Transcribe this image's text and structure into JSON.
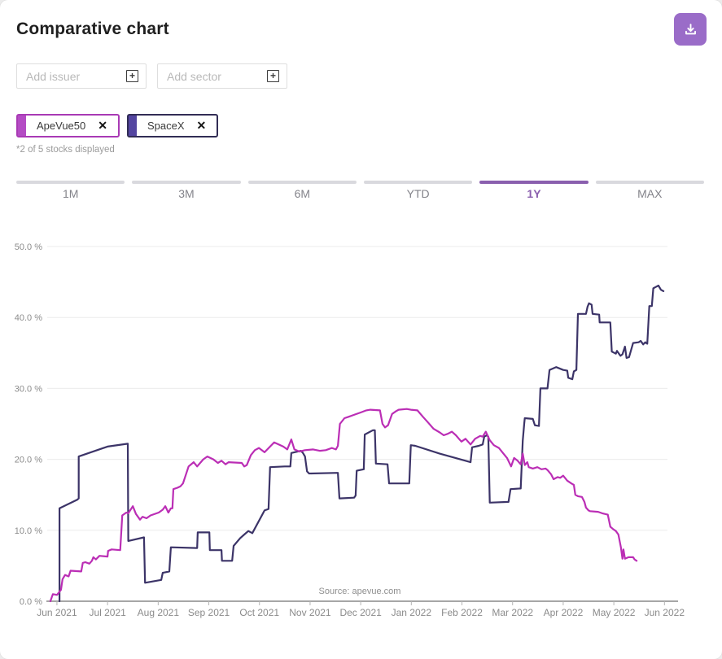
{
  "header": {
    "title": "Comparative chart"
  },
  "toolbar": {
    "download_button_color": "#9a6cc8"
  },
  "filters": {
    "issuer_placeholder": "Add issuer",
    "sector_placeholder": "Add sector",
    "plus_icon": "+"
  },
  "chips": [
    {
      "label": "ApeVue50",
      "bar_color": "#b44cc4",
      "border_color": "#a93ab5",
      "close_icon": "✕"
    },
    {
      "label": "SpaceX",
      "bar_color": "#5345a0",
      "border_color": "#322d55",
      "close_icon": "✕"
    }
  ],
  "caption": "*2 of 5 stocks displayed",
  "tabs": [
    {
      "label": "1M",
      "active": false
    },
    {
      "label": "3M",
      "active": false
    },
    {
      "label": "6M",
      "active": false
    },
    {
      "label": "YTD",
      "active": false
    },
    {
      "label": "1Y",
      "active": true
    },
    {
      "label": "MAX",
      "active": false
    }
  ],
  "chart_data": {
    "type": "line",
    "title": "",
    "xlabel": "",
    "ylabel": "",
    "grid": true,
    "legend_position": "none",
    "source_note": "Source: apevue.com",
    "ylim": [
      0,
      50
    ],
    "y_ticks": [
      "0.0 %",
      "10.0 %",
      "20.0 %",
      "30.0 %",
      "40.0 %",
      "50.0 %"
    ],
    "x_unit": "months_since_jun_2021",
    "xlim": [
      -0.16,
      12.22
    ],
    "x_ticks": [
      "Jun 2021",
      "Jul 2021",
      "Aug 2021",
      "Sep 2021",
      "Oct 2021",
      "Nov 2021",
      "Dec 2021",
      "Jan 2022",
      "Feb 2022",
      "Mar 2022",
      "Apr 2022",
      "May 2022",
      "Jun 2022"
    ],
    "series": [
      {
        "name": "SpaceX",
        "color": "#3c3468",
        "points": [
          [
            0.05,
            0
          ],
          [
            0.05,
            13.1
          ],
          [
            0.4,
            14.3
          ],
          [
            0.43,
            14.5
          ],
          [
            0.43,
            20.4
          ],
          [
            1,
            21.8
          ],
          [
            1.4,
            22.2
          ],
          [
            1.41,
            8.5
          ],
          [
            1.72,
            9
          ],
          [
            1.74,
            2.6
          ],
          [
            2.06,
            3
          ],
          [
            2.09,
            4
          ],
          [
            2.22,
            4.2
          ],
          [
            2.25,
            7.6
          ],
          [
            2.77,
            7.5
          ],
          [
            2.78,
            9.7
          ],
          [
            3.01,
            9.7
          ],
          [
            3.02,
            7.2
          ],
          [
            3.25,
            7.2
          ],
          [
            3.26,
            5.7
          ],
          [
            3.46,
            5.7
          ],
          [
            3.49,
            7.8
          ],
          [
            3.62,
            8.9
          ],
          [
            3.7,
            9.4
          ],
          [
            3.78,
            9.9
          ],
          [
            3.86,
            9.6
          ],
          [
            4.1,
            12.8
          ],
          [
            4.18,
            13
          ],
          [
            4.21,
            18.9
          ],
          [
            4.5,
            19
          ],
          [
            4.61,
            19
          ],
          [
            4.63,
            20.9
          ],
          [
            4.82,
            21.2
          ],
          [
            4.86,
            20.9
          ],
          [
            4.9,
            20.4
          ],
          [
            4.94,
            18.3
          ],
          [
            4.98,
            18
          ],
          [
            5.55,
            18.1
          ],
          [
            5.58,
            14.5
          ],
          [
            5.87,
            14.6
          ],
          [
            5.9,
            14.9
          ],
          [
            5.92,
            18.4
          ],
          [
            6.06,
            18.6
          ],
          [
            6.08,
            23.5
          ],
          [
            6.24,
            24.1
          ],
          [
            6.28,
            24.1
          ],
          [
            6.3,
            19.4
          ],
          [
            6.53,
            19.3
          ],
          [
            6.56,
            16.6
          ],
          [
            6.96,
            16.6
          ],
          [
            6.99,
            22
          ],
          [
            7.08,
            21.9
          ],
          [
            7.56,
            20.8
          ],
          [
            8.17,
            19.6
          ],
          [
            8.2,
            21.7
          ],
          [
            8.33,
            21.9
          ],
          [
            8.41,
            22.1
          ],
          [
            8.44,
            23.2
          ],
          [
            8.49,
            23.4
          ],
          [
            8.52,
            23.2
          ],
          [
            8.55,
            13.9
          ],
          [
            8.92,
            14
          ],
          [
            8.96,
            15.8
          ],
          [
            9.16,
            15.9
          ],
          [
            9.2,
            22.6
          ],
          [
            9.23,
            25
          ],
          [
            9.24,
            25.8
          ],
          [
            9.4,
            25.7
          ],
          [
            9.44,
            24.8
          ],
          [
            9.52,
            24.7
          ],
          [
            9.55,
            30
          ],
          [
            9.69,
            30
          ],
          [
            9.73,
            32.6
          ],
          [
            9.86,
            33
          ],
          [
            10,
            32.6
          ],
          [
            10.08,
            32.5
          ],
          [
            10.1,
            31.5
          ],
          [
            10.18,
            31.3
          ],
          [
            10.21,
            32.4
          ],
          [
            10.26,
            32.6
          ],
          [
            10.29,
            40.5
          ],
          [
            10.45,
            40.5
          ],
          [
            10.48,
            41.5
          ],
          [
            10.51,
            42
          ],
          [
            10.56,
            41.8
          ],
          [
            10.58,
            40.5
          ],
          [
            10.71,
            40.4
          ],
          [
            10.72,
            39.3
          ],
          [
            10.93,
            39.3
          ],
          [
            10.96,
            35.2
          ],
          [
            11.04,
            34.9
          ],
          [
            11.06,
            35.3
          ],
          [
            11.13,
            34.6
          ],
          [
            11.17,
            34.8
          ],
          [
            11.22,
            35.9
          ],
          [
            11.25,
            34.3
          ],
          [
            11.3,
            34.4
          ],
          [
            11.38,
            36.4
          ],
          [
            11.49,
            36.5
          ],
          [
            11.53,
            36.7
          ],
          [
            11.58,
            36.2
          ],
          [
            11.62,
            36.5
          ],
          [
            11.66,
            36.3
          ],
          [
            11.7,
            41.6
          ],
          [
            11.75,
            41.6
          ],
          [
            11.78,
            44.1
          ],
          [
            11.83,
            44.3
          ],
          [
            11.88,
            44.5
          ],
          [
            11.93,
            43.9
          ],
          [
            11.98,
            43.7
          ]
        ]
      },
      {
        "name": "ApeVue50",
        "color": "#bb2eb5",
        "points": [
          [
            -0.13,
            0
          ],
          [
            -0.1,
            0.6
          ],
          [
            -0.08,
            1
          ],
          [
            0,
            0.9
          ],
          [
            0.08,
            1.6
          ],
          [
            0.11,
            3.1
          ],
          [
            0.16,
            3.7
          ],
          [
            0.23,
            3.5
          ],
          [
            0.27,
            4.3
          ],
          [
            0.48,
            4.2
          ],
          [
            0.51,
            5.4
          ],
          [
            0.56,
            5.5
          ],
          [
            0.64,
            5.3
          ],
          [
            0.69,
            5.7
          ],
          [
            0.72,
            6.2
          ],
          [
            0.77,
            5.9
          ],
          [
            0.84,
            6.4
          ],
          [
            1,
            6.3
          ],
          [
            1.01,
            7.1
          ],
          [
            1.08,
            7.3
          ],
          [
            1.25,
            7.2
          ],
          [
            1.29,
            12.1
          ],
          [
            1.37,
            12.5
          ],
          [
            1.41,
            12.4
          ],
          [
            1.5,
            13.4
          ],
          [
            1.56,
            12.3
          ],
          [
            1.64,
            11.5
          ],
          [
            1.69,
            11.9
          ],
          [
            1.77,
            11.7
          ],
          [
            1.85,
            12.1
          ],
          [
            2.01,
            12.5
          ],
          [
            2.09,
            12.9
          ],
          [
            2.14,
            13.4
          ],
          [
            2.2,
            12.5
          ],
          [
            2.25,
            13.1
          ],
          [
            2.28,
            13.1
          ],
          [
            2.3,
            15.8
          ],
          [
            2.38,
            16
          ],
          [
            2.44,
            16.2
          ],
          [
            2.49,
            16.6
          ],
          [
            2.6,
            19
          ],
          [
            2.7,
            19.6
          ],
          [
            2.77,
            19
          ],
          [
            2.89,
            20
          ],
          [
            2.97,
            20.4
          ],
          [
            3.09,
            20
          ],
          [
            3.18,
            19.5
          ],
          [
            3.25,
            19.8
          ],
          [
            3.33,
            19.3
          ],
          [
            3.39,
            19.6
          ],
          [
            3.65,
            19.5
          ],
          [
            3.7,
            19
          ],
          [
            3.75,
            19.2
          ],
          [
            3.83,
            20.6
          ],
          [
            3.91,
            21.3
          ],
          [
            3.99,
            21.6
          ],
          [
            4.1,
            21
          ],
          [
            4.21,
            21.8
          ],
          [
            4.29,
            22.4
          ],
          [
            4.47,
            21.8
          ],
          [
            4.55,
            21.4
          ],
          [
            4.63,
            22.8
          ],
          [
            4.69,
            21.4
          ],
          [
            4.79,
            21.1
          ],
          [
            4.9,
            21.3
          ],
          [
            5.06,
            21.4
          ],
          [
            5.19,
            21.2
          ],
          [
            5.31,
            21.3
          ],
          [
            5.43,
            21.6
          ],
          [
            5.51,
            21.4
          ],
          [
            5.55,
            21.9
          ],
          [
            5.59,
            25
          ],
          [
            5.68,
            25.8
          ],
          [
            5.76,
            26
          ],
          [
            5.84,
            26.2
          ],
          [
            6,
            26.6
          ],
          [
            6.11,
            26.9
          ],
          [
            6.19,
            27
          ],
          [
            6.38,
            26.9
          ],
          [
            6.43,
            25
          ],
          [
            6.48,
            24.5
          ],
          [
            6.54,
            24.8
          ],
          [
            6.62,
            26.4
          ],
          [
            6.7,
            26.8
          ],
          [
            6.75,
            27
          ],
          [
            6.91,
            27.1
          ],
          [
            6.99,
            27
          ],
          [
            7.12,
            26.9
          ],
          [
            7.23,
            26
          ],
          [
            7.33,
            25.2
          ],
          [
            7.44,
            24.3
          ],
          [
            7.56,
            23.8
          ],
          [
            7.64,
            23.4
          ],
          [
            7.72,
            23.6
          ],
          [
            7.8,
            23.9
          ],
          [
            7.88,
            23.4
          ],
          [
            7.94,
            22.9
          ],
          [
            7.99,
            22.5
          ],
          [
            8.07,
            22.9
          ],
          [
            8.17,
            22.1
          ],
          [
            8.26,
            22.9
          ],
          [
            8.36,
            23.3
          ],
          [
            8.41,
            23.2
          ],
          [
            8.47,
            23.9
          ],
          [
            8.55,
            22.7
          ],
          [
            8.63,
            22
          ],
          [
            8.73,
            21.6
          ],
          [
            8.81,
            20.9
          ],
          [
            8.89,
            20.2
          ],
          [
            8.97,
            19
          ],
          [
            9.03,
            20.2
          ],
          [
            9.1,
            19.8
          ],
          [
            9.16,
            19.3
          ],
          [
            9.2,
            20.8
          ],
          [
            9.24,
            19.2
          ],
          [
            9.29,
            19.6
          ],
          [
            9.32,
            18.9
          ],
          [
            9.4,
            18.7
          ],
          [
            9.49,
            18.9
          ],
          [
            9.57,
            18.6
          ],
          [
            9.65,
            18.7
          ],
          [
            9.69,
            18.5
          ],
          [
            9.76,
            17.9
          ],
          [
            9.81,
            17.2
          ],
          [
            9.89,
            17.5
          ],
          [
            9.94,
            17.4
          ],
          [
            10,
            17.7
          ],
          [
            10.08,
            17
          ],
          [
            10.16,
            16.6
          ],
          [
            10.21,
            16.4
          ],
          [
            10.24,
            15
          ],
          [
            10.29,
            14.8
          ],
          [
            10.37,
            14.7
          ],
          [
            10.42,
            14
          ],
          [
            10.45,
            13.2
          ],
          [
            10.5,
            12.8
          ],
          [
            10.53,
            12.7
          ],
          [
            10.69,
            12.6
          ],
          [
            10.77,
            12.4
          ],
          [
            10.88,
            12.2
          ],
          [
            10.93,
            10.5
          ],
          [
            10.98,
            10.2
          ],
          [
            11.04,
            9.9
          ],
          [
            11.09,
            9.4
          ],
          [
            11.14,
            7.6
          ],
          [
            11.17,
            6
          ],
          [
            11.19,
            7.3
          ],
          [
            11.22,
            6
          ],
          [
            11.29,
            6.2
          ],
          [
            11.38,
            6.2
          ],
          [
            11.41,
            5.9
          ],
          [
            11.45,
            5.7
          ]
        ]
      }
    ]
  }
}
